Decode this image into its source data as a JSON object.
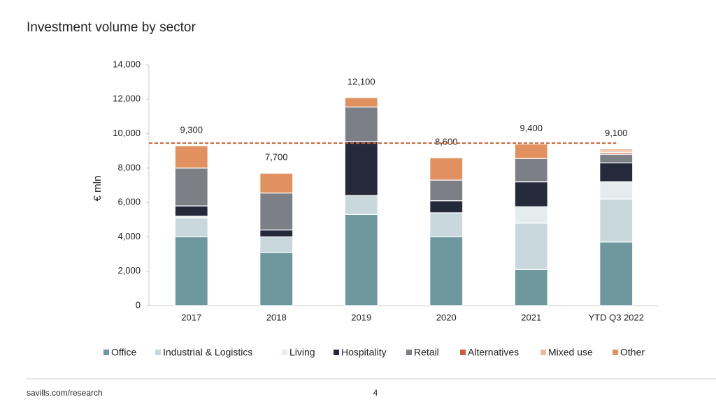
{
  "chart_data": {
    "type": "stacked_bar",
    "title": "Investment volume by sector",
    "y_axis_label": "€ mln",
    "categories": [
      "2017",
      "2018",
      "2019",
      "2020",
      "2021",
      "YTD Q3 2022"
    ],
    "series": [
      {
        "name": "Office",
        "color": "#6e979e",
        "values": [
          4000,
          3100,
          5300,
          4000,
          2100,
          3700
        ]
      },
      {
        "name": "Industrial & Logistics",
        "color": "#c9d8dc",
        "values": [
          1100,
          900,
          1100,
          1400,
          2700,
          2500
        ]
      },
      {
        "name": "Living",
        "color": "#e4ecee",
        "values": [
          100,
          0,
          0,
          0,
          950,
          1000
        ]
      },
      {
        "name": "Hospitality",
        "color": "#252a3a",
        "values": [
          600,
          400,
          3150,
          700,
          1450,
          1100
        ]
      },
      {
        "name": "Retail",
        "color": "#7d7f87",
        "values": [
          2200,
          2150,
          2000,
          1200,
          1350,
          500
        ]
      },
      {
        "name": "Alternatives",
        "color": "#c8603a",
        "values": [
          0,
          0,
          0,
          0,
          0,
          100
        ]
      },
      {
        "name": "Mixed use",
        "color": "#e8bca6",
        "values": [
          0,
          0,
          0,
          0,
          0,
          100
        ]
      },
      {
        "name": "Other",
        "color": "#e0915f",
        "values": [
          1300,
          1150,
          550,
          1300,
          850,
          100
        ]
      }
    ],
    "totals": [
      9300,
      7700,
      12100,
      8600,
      9400,
      9100
    ],
    "total_labels": [
      "9,300",
      "7,700",
      "12,100",
      "8,600",
      "9,400",
      "9,100"
    ],
    "reference_line": {
      "value": 9450,
      "color": "#c8603a"
    },
    "ylim": [
      0,
      14000
    ],
    "yticks": [
      {
        "value": 0,
        "label": "0"
      },
      {
        "value": 2000,
        "label": "2,000"
      },
      {
        "value": 4000,
        "label": "4,000"
      },
      {
        "value": 6000,
        "label": "6,000"
      },
      {
        "value": 8000,
        "label": "8,000"
      },
      {
        "value": 10000,
        "label": "10,000"
      },
      {
        "value": 12000,
        "label": "12,000"
      },
      {
        "value": 14000,
        "label": "14,000"
      }
    ],
    "legend": "bottom"
  },
  "footer": {
    "source": "savills.com/research",
    "page": "4"
  }
}
